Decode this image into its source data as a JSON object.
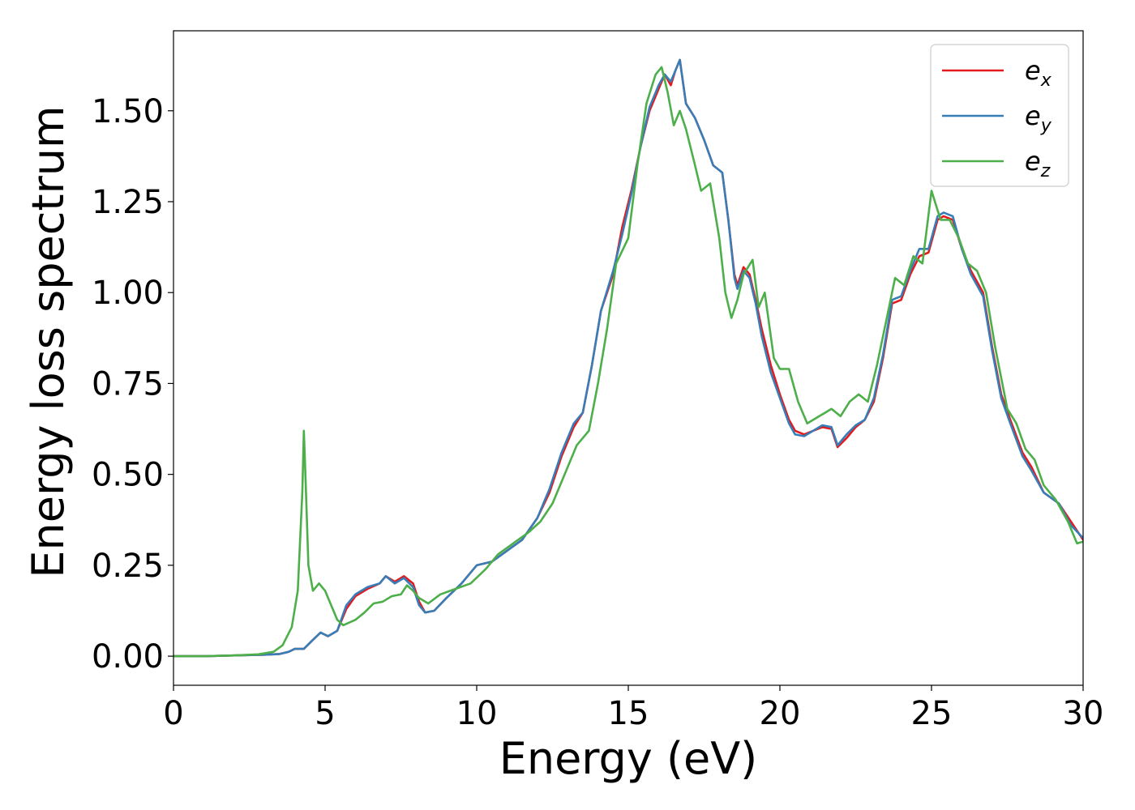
{
  "chart_data": {
    "type": "line",
    "title": "",
    "xlabel": "Energy (eV)",
    "ylabel": "Energy loss spectrum",
    "xlim": [
      0,
      30
    ],
    "ylim": [
      -0.08,
      1.72
    ],
    "x_ticks": [
      0,
      5,
      10,
      15,
      20,
      25,
      30
    ],
    "x_tick_labels": [
      "0",
      "5",
      "10",
      "15",
      "20",
      "25",
      "30"
    ],
    "y_ticks": [
      0.0,
      0.25,
      0.5,
      0.75,
      1.0,
      1.25,
      1.5
    ],
    "y_tick_labels": [
      "0.00",
      "0.25",
      "0.50",
      "0.75",
      "1.00",
      "1.25",
      "1.50"
    ],
    "grid": false,
    "legend_position": "top-right",
    "series": [
      {
        "name": "e_x",
        "legend_base": "e",
        "legend_sub": "x",
        "color": "#e41a1c",
        "points": [
          [
            0,
            0.0
          ],
          [
            1,
            0.0
          ],
          [
            2,
            0.002
          ],
          [
            3,
            0.004
          ],
          [
            3.5,
            0.006
          ],
          [
            3.8,
            0.012
          ],
          [
            4.0,
            0.02
          ],
          [
            4.3,
            0.02
          ],
          [
            4.6,
            0.045
          ],
          [
            4.85,
            0.065
          ],
          [
            5.1,
            0.055
          ],
          [
            5.4,
            0.07
          ],
          [
            5.7,
            0.13
          ],
          [
            6.0,
            0.165
          ],
          [
            6.4,
            0.185
          ],
          [
            6.8,
            0.2
          ],
          [
            7.0,
            0.22
          ],
          [
            7.3,
            0.205
          ],
          [
            7.6,
            0.22
          ],
          [
            7.9,
            0.2
          ],
          [
            8.1,
            0.15
          ],
          [
            8.3,
            0.12
          ],
          [
            8.6,
            0.125
          ],
          [
            9.0,
            0.16
          ],
          [
            9.5,
            0.2
          ],
          [
            10.0,
            0.25
          ],
          [
            10.5,
            0.26
          ],
          [
            11.0,
            0.29
          ],
          [
            11.5,
            0.32
          ],
          [
            12.0,
            0.38
          ],
          [
            12.4,
            0.45
          ],
          [
            12.8,
            0.55
          ],
          [
            13.2,
            0.63
          ],
          [
            13.5,
            0.67
          ],
          [
            13.8,
            0.8
          ],
          [
            14.1,
            0.95
          ],
          [
            14.5,
            1.05
          ],
          [
            14.8,
            1.18
          ],
          [
            15.1,
            1.28
          ],
          [
            15.4,
            1.4
          ],
          [
            15.7,
            1.5
          ],
          [
            16.0,
            1.56
          ],
          [
            16.2,
            1.6
          ],
          [
            16.4,
            1.57
          ],
          [
            16.55,
            1.61
          ],
          [
            16.7,
            1.64
          ],
          [
            16.9,
            1.52
          ],
          [
            17.2,
            1.48
          ],
          [
            17.5,
            1.42
          ],
          [
            17.8,
            1.35
          ],
          [
            18.1,
            1.33
          ],
          [
            18.3,
            1.2
          ],
          [
            18.5,
            1.05
          ],
          [
            18.6,
            1.02
          ],
          [
            18.8,
            1.07
          ],
          [
            19.0,
            1.05
          ],
          [
            19.2,
            0.98
          ],
          [
            19.4,
            0.9
          ],
          [
            19.7,
            0.8
          ],
          [
            20.0,
            0.72
          ],
          [
            20.3,
            0.65
          ],
          [
            20.5,
            0.62
          ],
          [
            20.8,
            0.61
          ],
          [
            21.1,
            0.62
          ],
          [
            21.4,
            0.63
          ],
          [
            21.7,
            0.625
          ],
          [
            21.9,
            0.575
          ],
          [
            22.2,
            0.6
          ],
          [
            22.5,
            0.63
          ],
          [
            22.8,
            0.65
          ],
          [
            23.1,
            0.7
          ],
          [
            23.4,
            0.82
          ],
          [
            23.7,
            0.97
          ],
          [
            24.0,
            0.98
          ],
          [
            24.3,
            1.05
          ],
          [
            24.6,
            1.1
          ],
          [
            24.9,
            1.11
          ],
          [
            25.2,
            1.2
          ],
          [
            25.4,
            1.21
          ],
          [
            25.7,
            1.2
          ],
          [
            26.0,
            1.12
          ],
          [
            26.3,
            1.06
          ],
          [
            26.7,
            1.0
          ],
          [
            27.0,
            0.85
          ],
          [
            27.3,
            0.72
          ],
          [
            27.6,
            0.65
          ],
          [
            28.0,
            0.56
          ],
          [
            28.3,
            0.52
          ],
          [
            28.7,
            0.45
          ],
          [
            29.2,
            0.42
          ],
          [
            29.6,
            0.37
          ],
          [
            30.0,
            0.32
          ]
        ]
      },
      {
        "name": "e_y",
        "legend_base": "e",
        "legend_sub": "y",
        "color": "#377eb8",
        "points": [
          [
            0,
            0.0
          ],
          [
            1,
            0.0
          ],
          [
            2,
            0.002
          ],
          [
            3,
            0.004
          ],
          [
            3.5,
            0.006
          ],
          [
            3.8,
            0.012
          ],
          [
            4.0,
            0.02
          ],
          [
            4.3,
            0.02
          ],
          [
            4.6,
            0.045
          ],
          [
            4.85,
            0.065
          ],
          [
            5.1,
            0.055
          ],
          [
            5.4,
            0.07
          ],
          [
            5.7,
            0.14
          ],
          [
            6.0,
            0.17
          ],
          [
            6.4,
            0.19
          ],
          [
            6.8,
            0.2
          ],
          [
            7.0,
            0.22
          ],
          [
            7.3,
            0.2
          ],
          [
            7.6,
            0.215
          ],
          [
            7.9,
            0.19
          ],
          [
            8.1,
            0.14
          ],
          [
            8.3,
            0.12
          ],
          [
            8.6,
            0.125
          ],
          [
            9.0,
            0.16
          ],
          [
            9.5,
            0.2
          ],
          [
            10.0,
            0.25
          ],
          [
            10.5,
            0.26
          ],
          [
            11.0,
            0.29
          ],
          [
            11.5,
            0.32
          ],
          [
            12.0,
            0.38
          ],
          [
            12.4,
            0.46
          ],
          [
            12.8,
            0.56
          ],
          [
            13.2,
            0.64
          ],
          [
            13.5,
            0.67
          ],
          [
            13.8,
            0.8
          ],
          [
            14.1,
            0.95
          ],
          [
            14.5,
            1.06
          ],
          [
            14.8,
            1.16
          ],
          [
            15.1,
            1.27
          ],
          [
            15.4,
            1.4
          ],
          [
            15.7,
            1.51
          ],
          [
            16.0,
            1.57
          ],
          [
            16.2,
            1.6
          ],
          [
            16.4,
            1.58
          ],
          [
            16.55,
            1.61
          ],
          [
            16.7,
            1.64
          ],
          [
            16.9,
            1.52
          ],
          [
            17.2,
            1.48
          ],
          [
            17.5,
            1.42
          ],
          [
            17.8,
            1.35
          ],
          [
            18.1,
            1.33
          ],
          [
            18.3,
            1.2
          ],
          [
            18.5,
            1.04
          ],
          [
            18.6,
            1.01
          ],
          [
            18.8,
            1.06
          ],
          [
            19.0,
            1.04
          ],
          [
            19.2,
            0.97
          ],
          [
            19.4,
            0.88
          ],
          [
            19.7,
            0.78
          ],
          [
            20.0,
            0.71
          ],
          [
            20.3,
            0.64
          ],
          [
            20.5,
            0.61
          ],
          [
            20.8,
            0.605
          ],
          [
            21.1,
            0.62
          ],
          [
            21.4,
            0.635
          ],
          [
            21.7,
            0.63
          ],
          [
            21.9,
            0.58
          ],
          [
            22.2,
            0.61
          ],
          [
            22.5,
            0.635
          ],
          [
            22.8,
            0.65
          ],
          [
            23.1,
            0.71
          ],
          [
            23.4,
            0.83
          ],
          [
            23.7,
            0.98
          ],
          [
            24.0,
            0.99
          ],
          [
            24.3,
            1.06
          ],
          [
            24.6,
            1.12
          ],
          [
            24.9,
            1.12
          ],
          [
            25.2,
            1.21
          ],
          [
            25.4,
            1.22
          ],
          [
            25.7,
            1.21
          ],
          [
            26.0,
            1.12
          ],
          [
            26.3,
            1.05
          ],
          [
            26.7,
            0.99
          ],
          [
            27.0,
            0.84
          ],
          [
            27.3,
            0.71
          ],
          [
            27.6,
            0.64
          ],
          [
            28.0,
            0.55
          ],
          [
            28.3,
            0.51
          ],
          [
            28.7,
            0.45
          ],
          [
            29.2,
            0.42
          ],
          [
            29.6,
            0.36
          ],
          [
            30.0,
            0.325
          ]
        ]
      },
      {
        "name": "e_z",
        "legend_base": "e",
        "legend_sub": "z",
        "color": "#4daf4a",
        "points": [
          [
            0,
            0.0
          ],
          [
            1,
            0.0
          ],
          [
            2,
            0.002
          ],
          [
            2.8,
            0.005
          ],
          [
            3.3,
            0.012
          ],
          [
            3.6,
            0.03
          ],
          [
            3.9,
            0.08
          ],
          [
            4.1,
            0.18
          ],
          [
            4.25,
            0.45
          ],
          [
            4.3,
            0.62
          ],
          [
            4.35,
            0.5
          ],
          [
            4.45,
            0.25
          ],
          [
            4.6,
            0.18
          ],
          [
            4.8,
            0.2
          ],
          [
            5.0,
            0.18
          ],
          [
            5.2,
            0.14
          ],
          [
            5.4,
            0.1
          ],
          [
            5.6,
            0.085
          ],
          [
            6.0,
            0.1
          ],
          [
            6.3,
            0.12
          ],
          [
            6.6,
            0.145
          ],
          [
            6.9,
            0.15
          ],
          [
            7.2,
            0.165
          ],
          [
            7.5,
            0.17
          ],
          [
            7.7,
            0.195
          ],
          [
            7.9,
            0.18
          ],
          [
            8.1,
            0.16
          ],
          [
            8.4,
            0.145
          ],
          [
            8.8,
            0.17
          ],
          [
            9.3,
            0.185
          ],
          [
            9.8,
            0.2
          ],
          [
            10.3,
            0.24
          ],
          [
            10.7,
            0.28
          ],
          [
            11.2,
            0.31
          ],
          [
            11.7,
            0.34
          ],
          [
            12.1,
            0.37
          ],
          [
            12.5,
            0.42
          ],
          [
            12.9,
            0.5
          ],
          [
            13.3,
            0.58
          ],
          [
            13.7,
            0.62
          ],
          [
            14.0,
            0.75
          ],
          [
            14.3,
            0.9
          ],
          [
            14.6,
            1.08
          ],
          [
            15.0,
            1.15
          ],
          [
            15.3,
            1.35
          ],
          [
            15.6,
            1.52
          ],
          [
            15.9,
            1.6
          ],
          [
            16.1,
            1.62
          ],
          [
            16.3,
            1.55
          ],
          [
            16.5,
            1.46
          ],
          [
            16.7,
            1.5
          ],
          [
            16.9,
            1.45
          ],
          [
            17.2,
            1.35
          ],
          [
            17.4,
            1.28
          ],
          [
            17.7,
            1.3
          ],
          [
            18.0,
            1.15
          ],
          [
            18.2,
            1.0
          ],
          [
            18.4,
            0.93
          ],
          [
            18.6,
            0.98
          ],
          [
            18.8,
            1.05
          ],
          [
            19.1,
            1.09
          ],
          [
            19.3,
            0.96
          ],
          [
            19.5,
            1.0
          ],
          [
            19.8,
            0.82
          ],
          [
            20.0,
            0.79
          ],
          [
            20.3,
            0.79
          ],
          [
            20.6,
            0.7
          ],
          [
            20.9,
            0.64
          ],
          [
            21.3,
            0.66
          ],
          [
            21.7,
            0.68
          ],
          [
            22.0,
            0.66
          ],
          [
            22.3,
            0.7
          ],
          [
            22.6,
            0.72
          ],
          [
            22.9,
            0.7
          ],
          [
            23.2,
            0.8
          ],
          [
            23.5,
            0.92
          ],
          [
            23.8,
            1.04
          ],
          [
            24.1,
            1.02
          ],
          [
            24.4,
            1.1
          ],
          [
            24.7,
            1.08
          ],
          [
            25.0,
            1.28
          ],
          [
            25.3,
            1.2
          ],
          [
            25.6,
            1.2
          ],
          [
            25.9,
            1.15
          ],
          [
            26.2,
            1.08
          ],
          [
            26.5,
            1.06
          ],
          [
            26.8,
            1.0
          ],
          [
            27.1,
            0.85
          ],
          [
            27.5,
            0.68
          ],
          [
            27.8,
            0.64
          ],
          [
            28.1,
            0.57
          ],
          [
            28.4,
            0.54
          ],
          [
            28.7,
            0.47
          ],
          [
            29.1,
            0.43
          ],
          [
            29.5,
            0.37
          ],
          [
            29.8,
            0.31
          ],
          [
            30.0,
            0.315
          ]
        ]
      }
    ]
  }
}
